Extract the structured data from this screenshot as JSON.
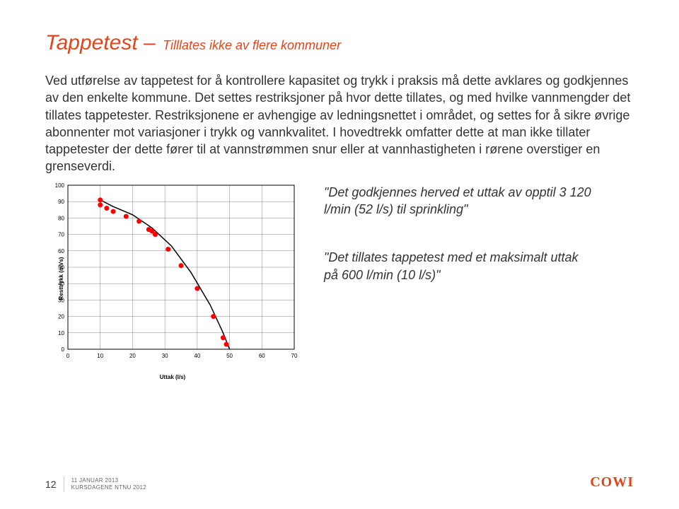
{
  "title": {
    "main": "Tappetest –",
    "sub": "Tilllates ikke av flere kommuner"
  },
  "paragraph": "Ved utførelse av tappetest for å kontrollere kapasitet og trykk i praksis må dette avklares og godkjennes av den enkelte kommune. Det settes restriksjoner på hvor dette tillates, og med hvilke vannmengder det tillates tappetester. Restriksjonene er avhengige av ledningsnettet i området, og settes for å sikre øvrige abonnenter mot variasjoner i trykk og vannkvalitet. I hovedtrekk omfatter dette at man ikke tillater tappetester der dette fører til at vannstrømmen snur eller at vannhastigheten i rørene overstiger en grenseverdi.",
  "quotes": {
    "q1": "\"Det godkjennes herved et uttak av opptil 3 120 l/min (52 l/s) til sprinkling\"",
    "q2": "\"Det tillates tappetest med et maksimalt uttak på 600 l/min (10 l/s)\""
  },
  "chart": {
    "type": "line",
    "ylabel": "Resttrykk (mVs)",
    "xlabel": "Uttak (l/s)",
    "xlim": [
      0,
      70
    ],
    "xtick_step": 10,
    "ylim": [
      0,
      100
    ],
    "ytick_step": 10,
    "background_color": "#ffffff",
    "grid_color": "#808080",
    "border_color": "#000000",
    "tick_fontsize": 8,
    "line_color": "#000000",
    "line_width": 1.5,
    "marker_color": "#ff0000",
    "marker_size": 3,
    "data_x": [
      10,
      10,
      12,
      14,
      18,
      22,
      25,
      26,
      27,
      31,
      35,
      40,
      45,
      48,
      49
    ],
    "data_y": [
      91,
      88,
      86,
      84,
      81,
      78,
      73,
      72,
      70,
      61,
      51,
      37,
      20,
      7,
      3
    ],
    "curve_x": [
      10,
      14,
      20,
      26,
      32,
      38,
      44,
      48,
      50
    ],
    "curve_y": [
      91,
      87,
      82,
      74,
      63,
      47,
      27,
      10,
      0
    ]
  },
  "footer": {
    "page": "12",
    "date": "11 JANUAR 2013",
    "event": "KURSDAGENE NTNU 2012",
    "logo": "COWI"
  },
  "colors": {
    "accent": "#e2451b",
    "text": "#333333"
  }
}
